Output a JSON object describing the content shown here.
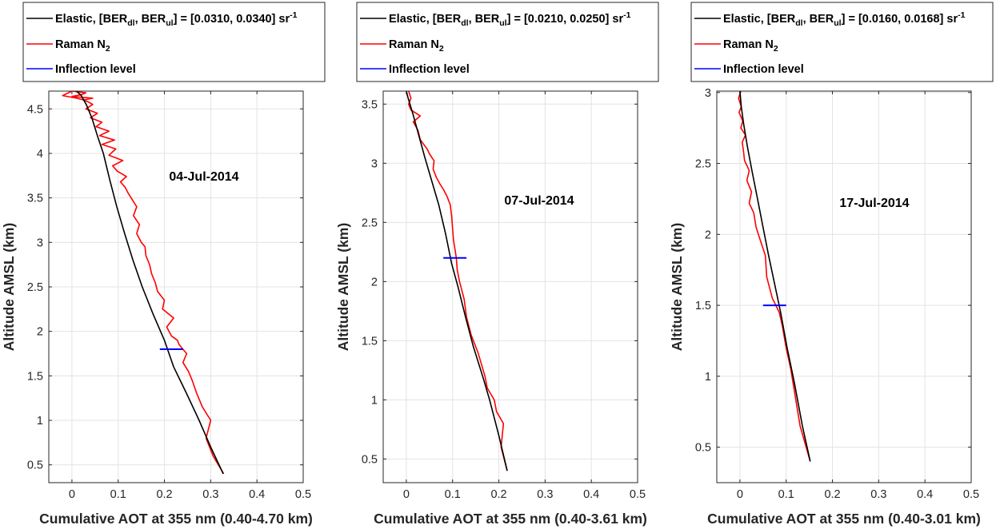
{
  "chart_data": [
    {
      "type": "line",
      "title": "",
      "annotation": "04-Jul-2014",
      "xlabel": "Cumulative AOT at 355 nm (0.40-4.70 km)",
      "ylabel": "Altitude AMSL (km)",
      "xlim": [
        -0.05,
        0.5
      ],
      "ylim": [
        0.3,
        4.7
      ],
      "xticks": [
        0,
        0.1,
        0.2,
        0.3,
        0.4,
        0.5
      ],
      "xtick_labels": [
        "0",
        "0.1",
        "0.2",
        "0.3",
        "0.4",
        "0.5"
      ],
      "yticks": [
        0.5,
        1,
        1.5,
        2,
        2.5,
        3,
        3.5,
        4,
        4.5
      ],
      "ytick_labels": [
        "0.5",
        "1",
        "1.5",
        "2",
        "2.5",
        "3",
        "3.5",
        "4",
        "4.5"
      ],
      "grid": true,
      "legend_position": "top",
      "legend": {
        "elastic_label": [
          "Elastic, [BER",
          "dl",
          ", BER",
          "ul",
          "] = [0.0310, 0.0340] sr",
          "-1"
        ],
        "raman_label": [
          "Raman N",
          "2"
        ],
        "inflection_label": "Inflection level"
      },
      "series": [
        {
          "key": "elastic",
          "color": "#000000",
          "x": [
            0.327,
            0.3,
            0.275,
            0.248,
            0.22,
            0.2,
            0.175,
            0.152,
            0.132,
            0.114,
            0.097,
            0.082,
            0.068,
            0.055,
            0.043,
            0.031,
            0.02,
            0.01
          ],
          "y": [
            0.4,
            0.7,
            1.0,
            1.3,
            1.6,
            1.9,
            2.2,
            2.5,
            2.8,
            3.1,
            3.4,
            3.7,
            4.0,
            4.2,
            4.4,
            4.55,
            4.65,
            4.7
          ]
        },
        {
          "key": "raman",
          "color": "#ff0000",
          "x": [
            0.328,
            0.305,
            0.29,
            0.3,
            0.282,
            0.27,
            0.26,
            0.252,
            0.24,
            0.248,
            0.232,
            0.228,
            0.215,
            0.205,
            0.22,
            0.196,
            0.2,
            0.185,
            0.18,
            0.172,
            0.168,
            0.16,
            0.158,
            0.15,
            0.14,
            0.146,
            0.133,
            0.14,
            0.128,
            0.122,
            0.115,
            0.105,
            0.118,
            0.098,
            0.088,
            0.11,
            0.08,
            0.095,
            0.065,
            0.092,
            0.06,
            0.08,
            0.052,
            0.065,
            0.04,
            0.055,
            0.03,
            0.045,
            0.035,
            0.025,
            0.045,
            0.0,
            0.02,
            0.03,
            0.0,
            -0.02,
            0.01,
            0.025
          ],
          "y": [
            0.4,
            0.6,
            0.8,
            1.0,
            1.15,
            1.3,
            1.45,
            1.55,
            1.65,
            1.75,
            1.85,
            1.9,
            1.95,
            2.05,
            2.15,
            2.25,
            2.35,
            2.45,
            2.55,
            2.65,
            2.75,
            2.85,
            2.95,
            3.0,
            3.1,
            3.2,
            3.3,
            3.4,
            3.5,
            3.55,
            3.62,
            3.68,
            3.74,
            3.8,
            3.86,
            3.92,
            3.98,
            4.05,
            4.1,
            4.15,
            4.2,
            4.25,
            4.3,
            4.35,
            4.4,
            4.45,
            4.5,
            4.55,
            4.58,
            4.6,
            4.62,
            4.64,
            4.66,
            4.68,
            4.7,
            4.65,
            4.62,
            4.6
          ]
        }
      ],
      "inflection": {
        "altitude": 1.8,
        "x_range": [
          0.19,
          0.24
        ],
        "color": "#0000ff"
      }
    },
    {
      "type": "line",
      "title": "",
      "annotation": "07-Jul-2014",
      "xlabel": "Cumulative AOT at 355 nm (0.40-3.61 km)",
      "ylabel": "Altitude AMSL (km)",
      "xlim": [
        -0.05,
        0.5
      ],
      "ylim": [
        0.3,
        3.61
      ],
      "xticks": [
        0,
        0.1,
        0.2,
        0.3,
        0.4,
        0.5
      ],
      "xtick_labels": [
        "0",
        "0.1",
        "0.2",
        "0.3",
        "0.4",
        "0.5"
      ],
      "yticks": [
        0.5,
        1,
        1.5,
        2,
        2.5,
        3,
        3.5
      ],
      "ytick_labels": [
        "0.5",
        "1",
        "1.5",
        "2",
        "2.5",
        "3",
        "3.5"
      ],
      "grid": true,
      "legend_position": "top",
      "legend": {
        "elastic_label": [
          "Elastic, [BER",
          "dl",
          ", BER",
          "ul",
          "] = [0.0210, 0.0250] sr",
          "-1"
        ],
        "raman_label": [
          "Raman N",
          "2"
        ],
        "inflection_label": "Inflection level"
      },
      "series": [
        {
          "key": "elastic",
          "color": "#000000",
          "x": [
            0.218,
            0.2,
            0.18,
            0.165,
            0.145,
            0.128,
            0.112,
            0.098,
            0.085,
            0.07,
            0.055,
            0.04,
            0.026,
            0.014,
            0.004,
            0.0
          ],
          "y": [
            0.4,
            0.7,
            1.0,
            1.2,
            1.45,
            1.7,
            1.95,
            2.15,
            2.4,
            2.65,
            2.85,
            3.05,
            3.25,
            3.42,
            3.55,
            3.61
          ]
        },
        {
          "key": "raman",
          "color": "#ff0000",
          "x": [
            0.218,
            0.205,
            0.21,
            0.195,
            0.19,
            0.175,
            0.17,
            0.155,
            0.14,
            0.13,
            0.125,
            0.115,
            0.11,
            0.108,
            0.102,
            0.1,
            0.098,
            0.095,
            0.088,
            0.08,
            0.072,
            0.065,
            0.058,
            0.06,
            0.05,
            0.045,
            0.03,
            0.025,
            0.015,
            0.03,
            0.01,
            0.005,
            0.01,
            0.005
          ],
          "y": [
            0.4,
            0.6,
            0.8,
            0.9,
            1.0,
            1.1,
            1.2,
            1.4,
            1.55,
            1.7,
            1.85,
            2.0,
            2.1,
            2.2,
            2.35,
            2.45,
            2.55,
            2.65,
            2.72,
            2.78,
            2.83,
            2.88,
            2.95,
            3.02,
            3.08,
            3.12,
            3.2,
            3.28,
            3.35,
            3.4,
            3.45,
            3.5,
            3.55,
            3.61
          ]
        }
      ],
      "inflection": {
        "altitude": 2.2,
        "x_range": [
          0.08,
          0.13
        ],
        "color": "#0000ff"
      }
    },
    {
      "type": "line",
      "title": "",
      "annotation": "17-Jul-2014",
      "xlabel": "Cumulative AOT at 355 nm (0.40-3.01 km)",
      "ylabel": "Altitude AMSL (km)",
      "xlim": [
        -0.05,
        0.5
      ],
      "ylim": [
        0.25,
        3.01
      ],
      "xticks": [
        0,
        0.1,
        0.2,
        0.3,
        0.4,
        0.5
      ],
      "xtick_labels": [
        "0",
        "0.1",
        "0.2",
        "0.3",
        "0.4",
        "0.5"
      ],
      "yticks": [
        0.5,
        1,
        1.5,
        2,
        2.5,
        3
      ],
      "ytick_labels": [
        "0.5",
        "1",
        "1.5",
        "2",
        "2.5",
        "3"
      ],
      "grid": true,
      "legend_position": "top",
      "legend": {
        "elastic_label": [
          "Elastic, [BER",
          "dl",
          ", BER",
          "ul",
          "] = [0.0160, 0.0168] sr",
          "-1"
        ],
        "raman_label": [
          "Raman N",
          "2"
        ],
        "inflection_label": "Inflection level"
      },
      "series": [
        {
          "key": "elastic",
          "color": "#000000",
          "x": [
            0.152,
            0.135,
            0.118,
            0.102,
            0.088,
            0.075,
            0.062,
            0.05,
            0.038,
            0.026,
            0.016,
            0.008,
            0.003,
            0.0
          ],
          "y": [
            0.4,
            0.65,
            0.95,
            1.2,
            1.45,
            1.65,
            1.85,
            2.05,
            2.25,
            2.45,
            2.62,
            2.78,
            2.9,
            3.01
          ]
        },
        {
          "key": "raman",
          "color": "#ff0000",
          "x": [
            0.152,
            0.13,
            0.12,
            0.11,
            0.1,
            0.092,
            0.085,
            0.07,
            0.058,
            0.055,
            0.045,
            0.035,
            0.03,
            0.02,
            0.025,
            0.015,
            0.02,
            0.01,
            0.008,
            0.005,
            0.012,
            0.002,
            0.006,
            -0.002,
            0.003,
            -0.003,
            0.002
          ],
          "y": [
            0.4,
            0.65,
            0.85,
            1.05,
            1.2,
            1.35,
            1.45,
            1.55,
            1.7,
            1.85,
            1.95,
            2.05,
            2.15,
            2.22,
            2.3,
            2.38,
            2.45,
            2.52,
            2.58,
            2.65,
            2.7,
            2.75,
            2.8,
            2.86,
            2.9,
            2.96,
            3.01
          ]
        }
      ],
      "inflection": {
        "altitude": 1.5,
        "x_range": [
          0.05,
          0.1
        ],
        "color": "#0000ff"
      }
    }
  ]
}
